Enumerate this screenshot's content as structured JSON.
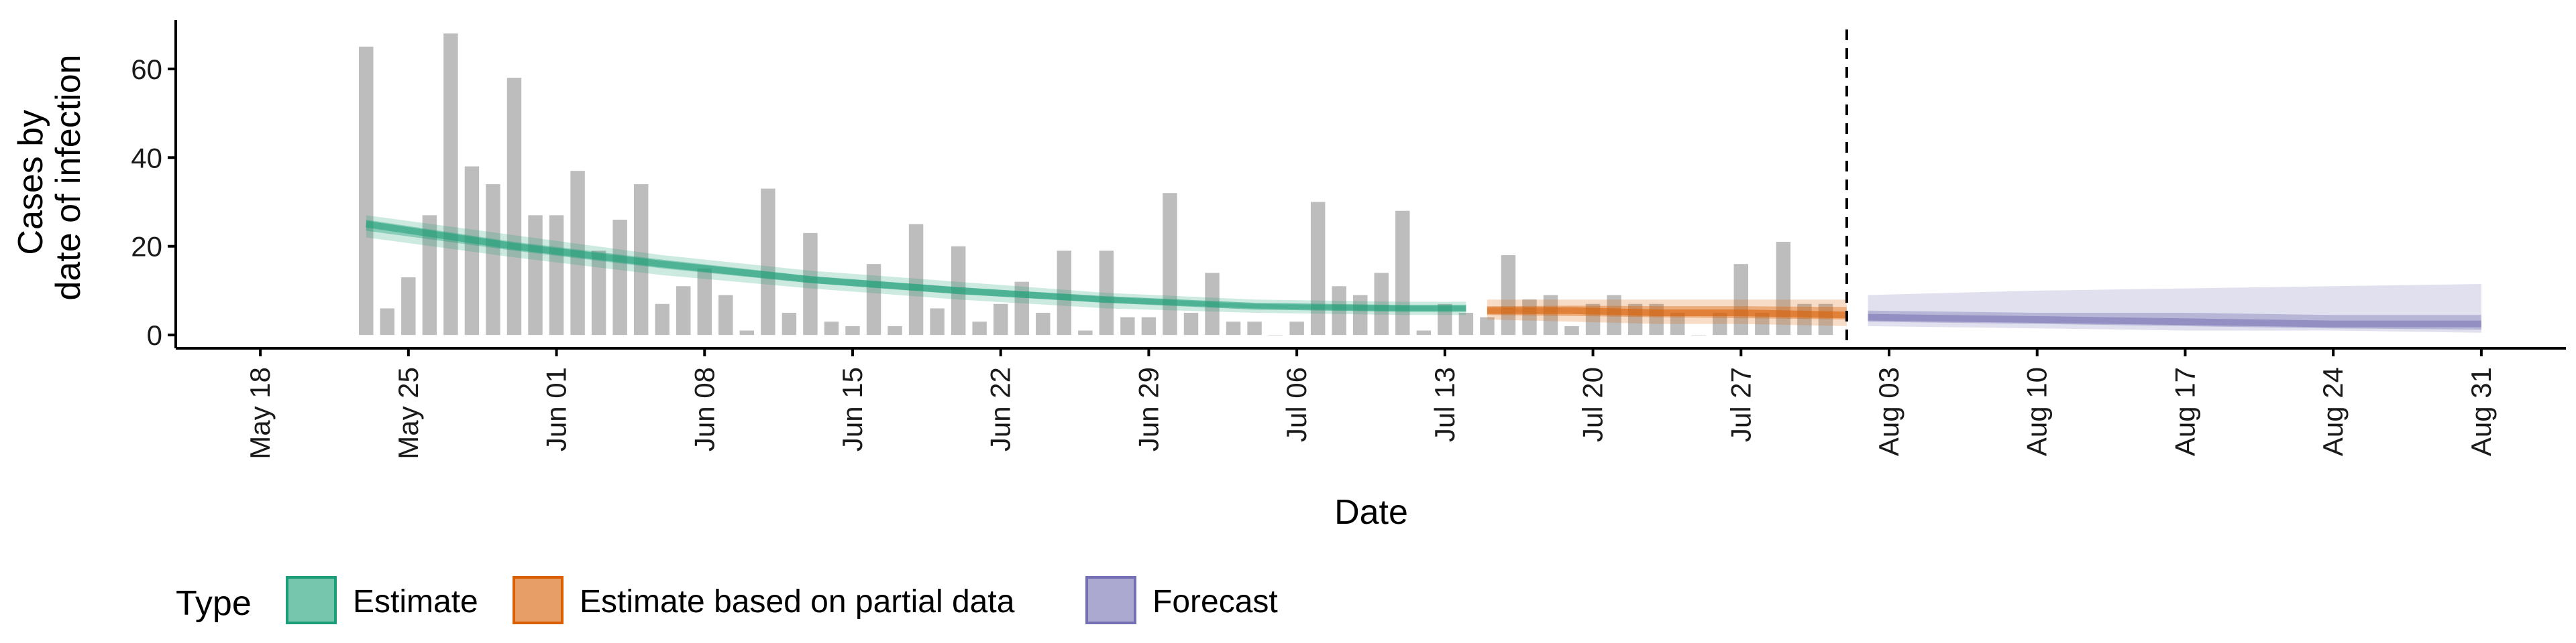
{
  "chart_data": {
    "type": "bar",
    "title": "",
    "xlabel": "Date",
    "ylabel_lines": [
      "Cases by",
      "date of infection"
    ],
    "ylim": [
      -3,
      71
    ],
    "y_ticks": [
      0,
      20,
      40,
      60
    ],
    "x_ticks": [
      {
        "date": "2020-05-18",
        "label": "May 18"
      },
      {
        "date": "2020-05-25",
        "label": "May 25"
      },
      {
        "date": "2020-06-01",
        "label": "Jun 01"
      },
      {
        "date": "2020-06-08",
        "label": "Jun 08"
      },
      {
        "date": "2020-06-15",
        "label": "Jun 15"
      },
      {
        "date": "2020-06-22",
        "label": "Jun 22"
      },
      {
        "date": "2020-06-29",
        "label": "Jun 29"
      },
      {
        "date": "2020-07-06",
        "label": "Jul 06"
      },
      {
        "date": "2020-07-13",
        "label": "Jul 13"
      },
      {
        "date": "2020-07-20",
        "label": "Jul 20"
      },
      {
        "date": "2020-07-27",
        "label": "Jul 27"
      },
      {
        "date": "2020-08-03",
        "label": "Aug 03"
      },
      {
        "date": "2020-08-10",
        "label": "Aug 10"
      },
      {
        "date": "2020-08-17",
        "label": "Aug 17"
      },
      {
        "date": "2020-08-24",
        "label": "Aug 24"
      },
      {
        "date": "2020-08-31",
        "label": "Aug 31"
      }
    ],
    "xlim": [
      "2020-05-14",
      "2020-09-04"
    ],
    "forecast_date": "2020-08-01",
    "bars_start_date": "2020-05-23",
    "bar_color": "#bdbdbd",
    "bars": [
      65,
      6,
      13,
      27,
      68,
      38,
      34,
      58,
      27,
      27,
      37,
      19,
      26,
      34,
      7,
      11,
      15,
      9,
      1,
      33,
      5,
      23,
      3,
      2,
      16,
      2,
      25,
      6,
      20,
      3,
      7,
      12,
      5,
      19,
      1,
      19,
      4,
      4,
      32,
      5,
      14,
      3,
      3,
      0,
      3,
      30,
      11,
      9,
      14,
      28,
      1,
      7,
      5,
      4,
      18,
      8,
      9,
      2,
      7,
      9,
      7,
      7,
      5,
      0,
      5,
      16,
      5,
      21,
      7,
      7
    ],
    "series": [
      {
        "name": "Estimate",
        "color": "#1b9e77",
        "dates": [
          "2020-05-23",
          "2020-05-30",
          "2020-06-06",
          "2020-06-13",
          "2020-06-20",
          "2020-06-27",
          "2020-07-04",
          "2020-07-11",
          "2020-07-14"
        ],
        "median": [
          25,
          20,
          16,
          12.5,
          10,
          8,
          6.5,
          6,
          6
        ],
        "lower_90": [
          22,
          17.5,
          13.5,
          10.5,
          8,
          6,
          5,
          4.5,
          4.5
        ],
        "upper_90": [
          27,
          22.5,
          18,
          14.5,
          12,
          9.5,
          8,
          7.5,
          7.5
        ],
        "lower_50": [
          23.5,
          19,
          15,
          11.7,
          9.2,
          7.3,
          6,
          5.4,
          5.4
        ],
        "upper_50": [
          26,
          21,
          17,
          13.3,
          10.8,
          8.6,
          7,
          6.6,
          6.6
        ]
      },
      {
        "name": "Estimate based on partial data",
        "color": "#d95f02",
        "dates": [
          "2020-07-15",
          "2020-07-19",
          "2020-07-23",
          "2020-07-27",
          "2020-08-01"
        ],
        "median": [
          5.5,
          5.5,
          5,
          5,
          4.5
        ],
        "lower_90": [
          3.5,
          3,
          2.5,
          2.5,
          2
        ],
        "upper_90": [
          8,
          8,
          8,
          8,
          8
        ],
        "lower_50": [
          4.5,
          4.3,
          4,
          3.8,
          3.5
        ],
        "upper_50": [
          6.5,
          6.6,
          6.5,
          6.5,
          6.3
        ]
      },
      {
        "name": "Forecast",
        "color": "#7570b3",
        "dates": [
          "2020-08-02",
          "2020-08-10",
          "2020-08-17",
          "2020-08-24",
          "2020-08-31"
        ],
        "median": [
          4,
          3.5,
          3,
          2.5,
          2.5
        ],
        "lower_90": [
          2,
          1.5,
          1,
          1,
          0.5
        ],
        "upper_90": [
          9,
          10,
          10.5,
          11,
          11.5
        ],
        "lower_50": [
          3,
          2.5,
          2,
          1.5,
          1.2
        ],
        "upper_50": [
          5.5,
          5,
          5,
          4.5,
          4.5
        ]
      }
    ],
    "legend": {
      "title": "Type",
      "position": "bottom-left",
      "items": [
        "Estimate",
        "Estimate based on partial data",
        "Forecast"
      ]
    },
    "grid": false
  }
}
